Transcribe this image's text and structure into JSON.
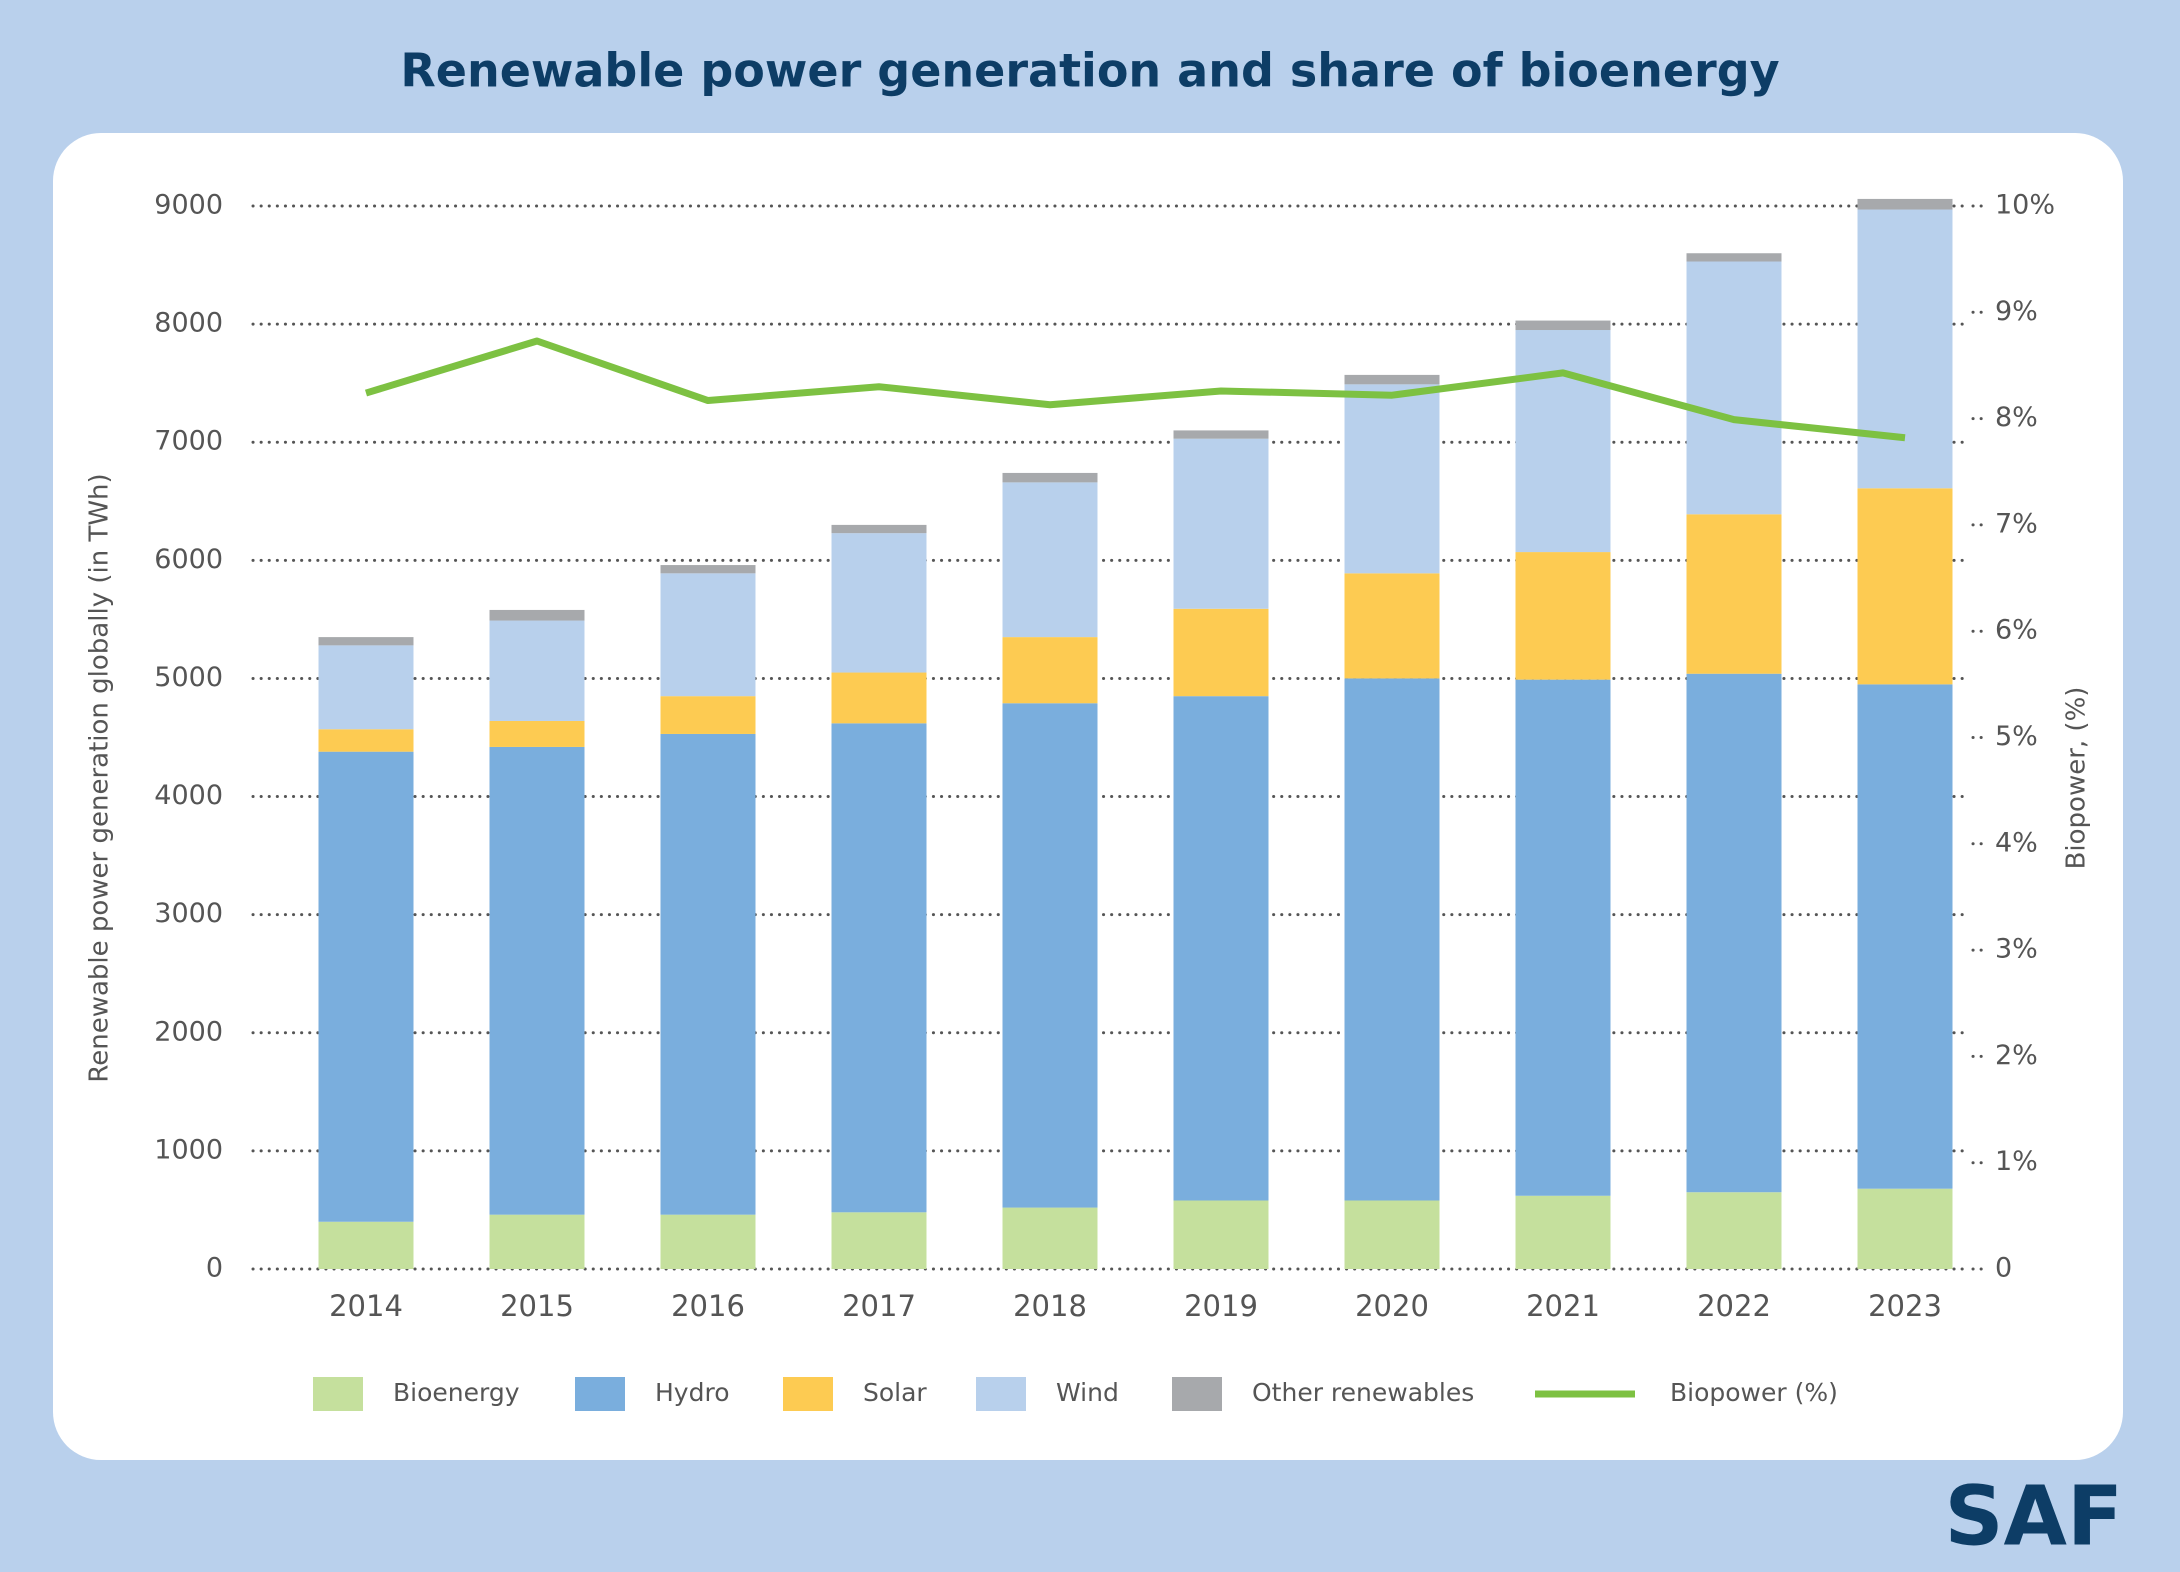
{
  "brand": "SAF",
  "chart_data": {
    "type": "bar",
    "stacked": true,
    "title": "Renewable power generation and share of bioenergy",
    "y_label": "Renewable power generation globally (in TWh)",
    "y2_label": "Biopower, (%)",
    "categories": [
      "2014",
      "2015",
      "2016",
      "2017",
      "2018",
      "2019",
      "2020",
      "2021",
      "2022",
      "2023"
    ],
    "series": [
      {
        "name": "Bioenergy",
        "color": "#c5e09d",
        "values": [
          400,
          460,
          460,
          480,
          520,
          580,
          580,
          620,
          650,
          680
        ]
      },
      {
        "name": "Hydro",
        "color": "#7aaedd",
        "values": [
          3980,
          3960,
          4070,
          4140,
          4270,
          4270,
          4420,
          4370,
          4390,
          4270
        ]
      },
      {
        "name": "Solar",
        "color": "#fdcb52",
        "values": [
          190,
          220,
          320,
          430,
          560,
          740,
          890,
          1080,
          1350,
          1660
        ]
      },
      {
        "name": "Wind",
        "color": "#b8d0ec",
        "values": [
          710,
          850,
          1040,
          1180,
          1310,
          1440,
          1600,
          1880,
          2140,
          2360
        ]
      },
      {
        "name": "Other renewables",
        "color": "#a7a9ac",
        "values": [
          70,
          90,
          70,
          70,
          80,
          70,
          80,
          80,
          70,
          90
        ]
      },
      {
        "name": "Biopower (%)",
        "color": "#7dc142",
        "type": "line",
        "axis": "y2",
        "values": [
          8.24,
          8.73,
          8.17,
          8.3,
          8.13,
          8.26,
          8.22,
          8.43,
          7.99,
          7.82
        ]
      }
    ],
    "ylim": [
      0,
      9000
    ],
    "yticks": [
      0,
      1000,
      2000,
      3000,
      4000,
      5000,
      6000,
      7000,
      8000,
      9000
    ],
    "y2lim": [
      0,
      10
    ],
    "y2ticks": [
      0,
      {
        "value": 1,
        "label": "1%"
      },
      {
        "value": 2,
        "label": "2%"
      },
      {
        "value": 3,
        "label": "3%"
      },
      {
        "value": 4,
        "label": "4%"
      },
      {
        "value": 5,
        "label": "5%"
      },
      {
        "value": 6,
        "label": "6%"
      },
      {
        "value": 7,
        "label": "7%"
      },
      {
        "value": 8,
        "label": "8%"
      },
      {
        "value": 9,
        "label": "9%"
      },
      {
        "value": 10,
        "label": "10%"
      }
    ],
    "grid": true,
    "legend": "bottom"
  }
}
